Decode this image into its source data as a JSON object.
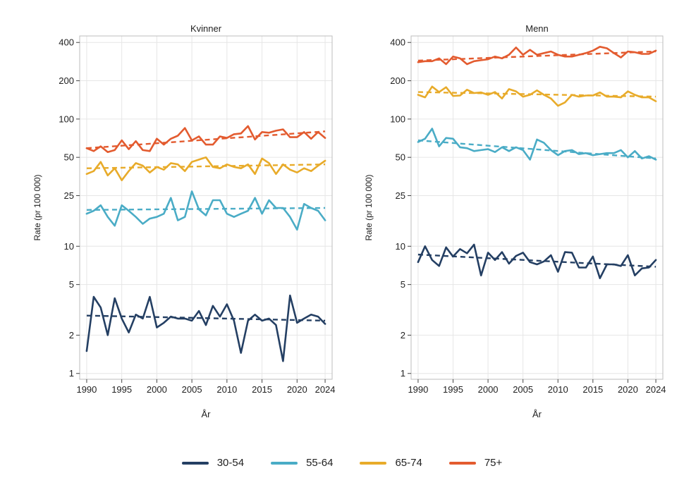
{
  "chart_data": {
    "type": "line",
    "y_scale": "log",
    "xlabel": "År",
    "ylabel": "Rate (pr 100 000)",
    "x": [
      1990,
      1991,
      1992,
      1993,
      1994,
      1995,
      1996,
      1997,
      1998,
      1999,
      2000,
      2001,
      2002,
      2003,
      2004,
      2005,
      2006,
      2007,
      2008,
      2009,
      2010,
      2011,
      2012,
      2013,
      2014,
      2015,
      2016,
      2017,
      2018,
      2019,
      2020,
      2021,
      2022,
      2023,
      2024
    ],
    "x_ticks": [
      "1990",
      "1995",
      "2000",
      "2005",
      "2010",
      "2015",
      "2020",
      "2024"
    ],
    "y_ticks": [
      "1",
      "2",
      "5",
      "10",
      "25",
      "50",
      "100",
      "200",
      "400"
    ],
    "y_tick_values": [
      1,
      2,
      5,
      10,
      25,
      50,
      100,
      200,
      400
    ],
    "ylim": [
      0.9,
      450
    ],
    "colors": {
      "30-54": "#243f63",
      "55-64": "#4aacc6",
      "65-74": "#e8ab2a",
      "75+": "#e35b2f"
    },
    "legend": {
      "position": "bottom",
      "entries": [
        "30-54",
        "55-64",
        "65-74",
        "75+"
      ]
    },
    "panels": [
      {
        "title": "Kvinner",
        "series": [
          {
            "name": "30-54",
            "values": [
              1.5,
              4.0,
              3.3,
              2.0,
              3.9,
              2.7,
              2.1,
              2.9,
              2.7,
              4.0,
              2.3,
              2.5,
              2.8,
              2.7,
              2.7,
              2.6,
              3.1,
              2.4,
              3.4,
              2.8,
              3.5,
              2.6,
              1.45,
              2.6,
              2.9,
              2.6,
              2.7,
              2.4,
              1.25,
              4.1,
              2.5,
              2.7,
              2.9,
              2.8,
              2.45
            ],
            "trend": [
              2.85,
              2.6
            ]
          },
          {
            "name": "55-64",
            "values": [
              18,
              19,
              21,
              17,
              14.5,
              21,
              19,
              17,
              15,
              16.5,
              17,
              18,
              24,
              16,
              17,
              27,
              19.5,
              17.5,
              23,
              23,
              18,
              17,
              18,
              19,
              24,
              18,
              23,
              20,
              20,
              17,
              13.5,
              21.5,
              20,
              19,
              16
            ],
            "trend": [
              19.3,
              20.0
            ]
          },
          {
            "name": "65-74",
            "values": [
              37,
              39,
              46,
              36,
              41,
              33,
              39,
              45,
              43,
              38,
              42,
              40,
              45,
              44,
              39,
              46,
              48,
              50,
              42,
              41,
              44,
              42,
              41,
              44,
              37,
              49,
              45,
              37,
              44,
              40,
              38,
              41,
              39,
              43,
              47
            ],
            "trend": [
              41,
              44
            ]
          },
          {
            "name": "75+",
            "values": [
              59,
              56,
              61,
              55,
              57,
              68,
              58,
              67,
              57,
              56,
              70,
              63,
              70,
              74,
              85,
              68,
              73,
              63,
              63,
              73,
              71,
              76,
              77,
              88,
              69,
              79,
              78,
              81,
              83,
              72,
              72,
              79,
              70,
              79,
              71
            ],
            "trend": [
              59,
              80
            ]
          }
        ]
      },
      {
        "title": "Menn",
        "series": [
          {
            "name": "30-54",
            "values": [
              7.5,
              10,
              7.8,
              7.0,
              9.8,
              8.3,
              9.5,
              8.8,
              10.3,
              5.9,
              8.9,
              7.8,
              9.0,
              7.3,
              8.4,
              8.9,
              7.5,
              7.2,
              7.6,
              8.5,
              6.3,
              9.0,
              8.9,
              6.8,
              6.8,
              8.3,
              5.6,
              7.2,
              7.2,
              7.0,
              8.5,
              5.9,
              6.7,
              6.8,
              7.8
            ],
            "trend": [
              8.6,
              6.9
            ]
          },
          {
            "name": "55-64",
            "values": [
              66,
              70,
              84,
              61,
              71,
              70,
              60,
              59,
              56,
              57,
              58,
              55,
              60,
              56,
              60,
              57,
              48,
              69,
              65,
              57,
              52,
              56,
              57,
              53,
              54,
              52,
              53,
              54,
              54,
              57,
              50,
              56,
              49,
              51,
              48
            ],
            "trend": [
              68,
              49
            ]
          },
          {
            "name": "65-74",
            "values": [
              155,
              148,
              180,
              163,
              178,
              152,
              153,
              170,
              160,
              162,
              155,
              163,
              145,
              172,
              165,
              150,
              155,
              168,
              155,
              145,
              127,
              135,
              155,
              150,
              153,
              153,
              162,
              150,
              150,
              148,
              165,
              155,
              148,
              148,
              138
            ],
            "trend": [
              163,
              150
            ]
          },
          {
            "name": "75+",
            "values": [
              280,
              285,
              285,
              300,
              270,
              310,
              300,
              270,
              285,
              290,
              295,
              310,
              300,
              320,
              365,
              320,
              350,
              320,
              330,
              340,
              320,
              310,
              310,
              320,
              330,
              345,
              370,
              360,
              330,
              305,
              340,
              335,
              325,
              325,
              345
            ],
            "trend": [
              288,
              340
            ]
          }
        ]
      }
    ]
  }
}
